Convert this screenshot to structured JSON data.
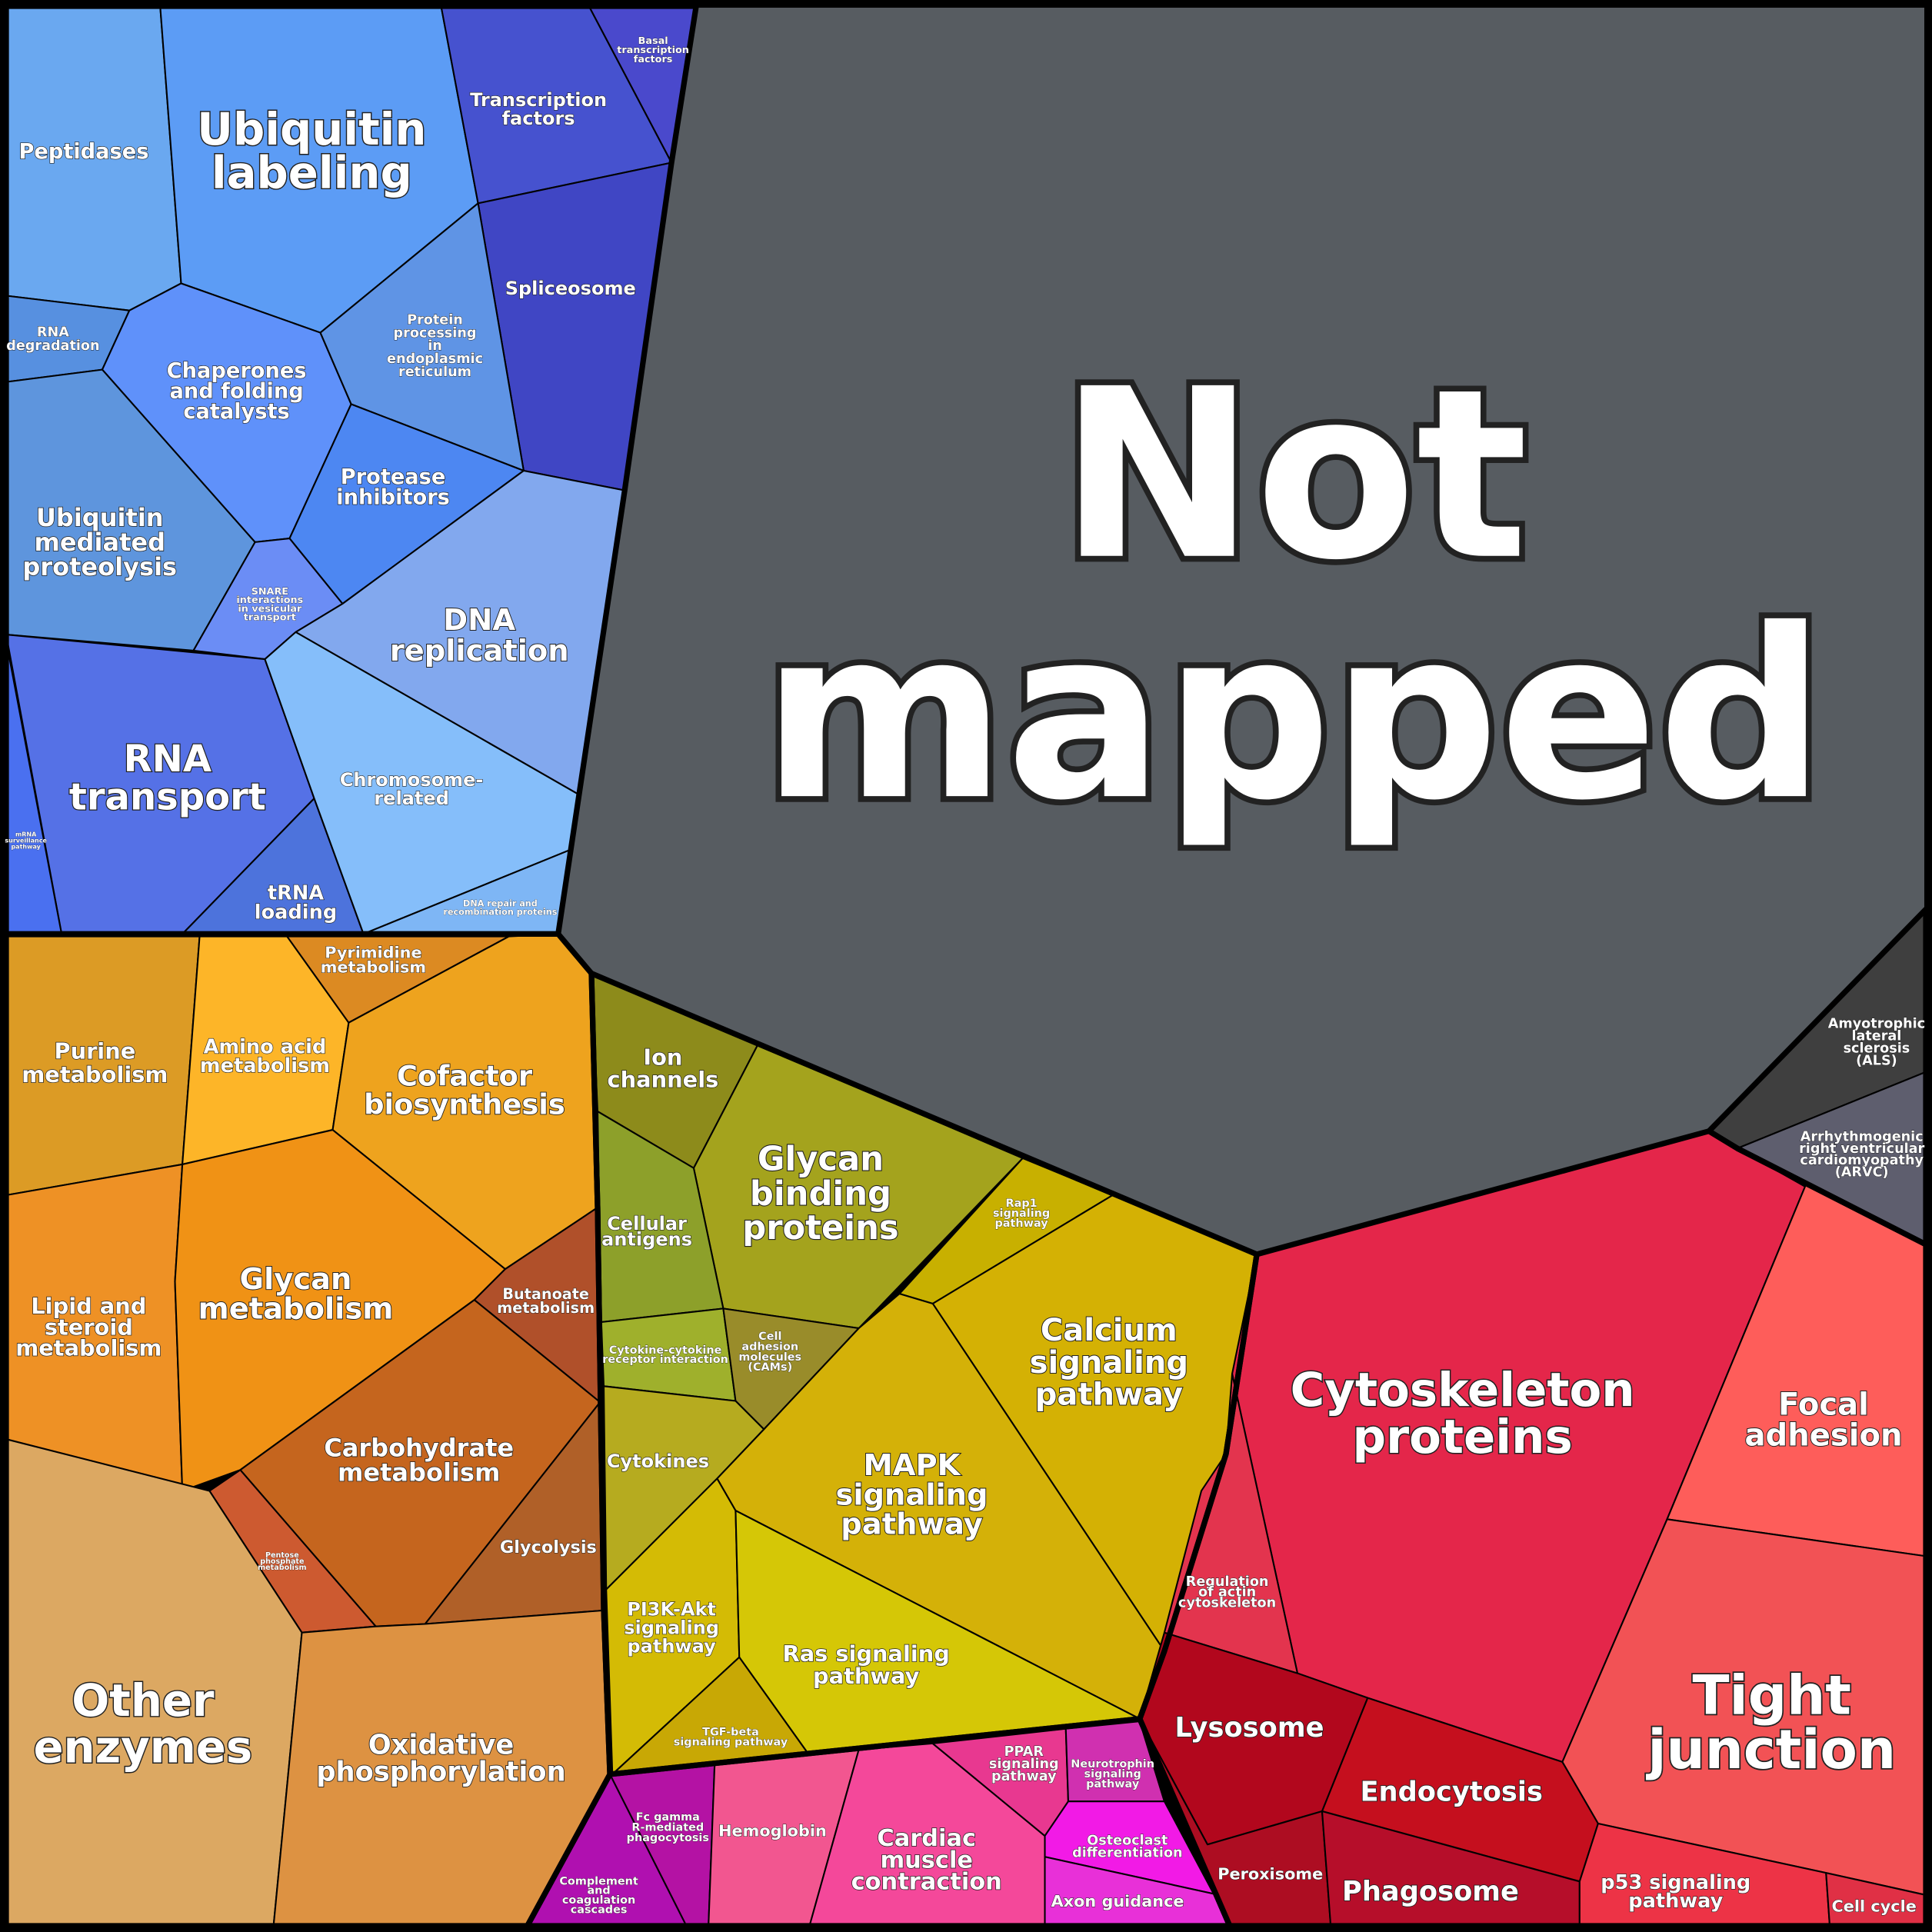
{
  "cells": [
    {
      "label": [
        "Peptidases"
      ]
    },
    {
      "label": [
        "Ubiquitin",
        "labeling"
      ]
    },
    {
      "label": [
        "Transcription",
        "factors"
      ]
    },
    {
      "label": [
        "Basal",
        "transcription",
        "factors"
      ]
    },
    {
      "label": [
        "Spliceosome"
      ]
    },
    {
      "label": [
        "RNA",
        "degradation"
      ]
    },
    {
      "label": [
        "Chaperones",
        "and folding",
        "catalysts"
      ]
    },
    {
      "label": [
        "Protein",
        "processing",
        "in",
        "endoplasmic",
        "reticulum"
      ]
    },
    {
      "label": [
        "Protease",
        "inhibitors"
      ]
    },
    {
      "label": [
        "Ubiquitin",
        "mediated",
        "proteolysis"
      ]
    },
    {
      "label": [
        "SNARE",
        "interactions",
        "in vesicular",
        "transport"
      ]
    },
    {
      "label": [
        "DNA",
        "replication"
      ]
    },
    {
      "label": [
        "RNA",
        "transport"
      ]
    },
    {
      "label": [
        "mRNA",
        "surveillance",
        "pathway"
      ]
    },
    {
      "label": [
        "tRNA",
        "loading"
      ]
    },
    {
      "label": [
        "Chromosome-",
        "related"
      ]
    },
    {
      "label": [
        "DNA repair and",
        "recombination proteins"
      ]
    },
    {
      "label": [
        "Not",
        "mapped"
      ]
    },
    {
      "label": [
        "Amyotrophic",
        "lateral",
        "sclerosis",
        "(ALS)"
      ]
    },
    {
      "label": [
        "Arrhythmogenic",
        "right ventricular",
        "cardiomyopathy",
        "(ARVC)"
      ]
    },
    {
      "label": [
        "Purine",
        "metabolism"
      ]
    },
    {
      "label": [
        "Amino acid",
        "metabolism"
      ]
    },
    {
      "label": [
        "Pyrimidine",
        "metabolism"
      ]
    },
    {
      "label": [
        "Cofactor",
        "biosynthesis"
      ]
    },
    {
      "label": [
        "Lipid and",
        "steroid",
        "metabolism"
      ]
    },
    {
      "label": [
        "Glycan",
        "metabolism"
      ]
    },
    {
      "label": [
        "Butanoate",
        "metabolism"
      ]
    },
    {
      "label": [
        "Carbohydrate",
        "metabolism"
      ]
    },
    {
      "label": [
        "Glycolysis"
      ]
    },
    {
      "label": [
        "Pentose",
        "phosphate",
        "metabolism"
      ]
    },
    {
      "label": [
        "Other",
        "enzymes"
      ]
    },
    {
      "label": [
        "Oxidative",
        "phosphorylation"
      ]
    },
    {
      "label": [
        "Ion",
        "channels"
      ]
    },
    {
      "label": [
        "Glycan",
        "binding",
        "proteins"
      ]
    },
    {
      "label": [
        "Cellular",
        "antigens"
      ]
    },
    {
      "label": [
        "Cytokine-cytokine",
        "receptor interaction"
      ]
    },
    {
      "label": [
        "Cell",
        "adhesion",
        "molecules",
        "(CAMs)"
      ]
    },
    {
      "label": [
        "Cytokines"
      ]
    },
    {
      "label": [
        "Rap1",
        "signaling",
        "pathway"
      ]
    },
    {
      "label": [
        "Calcium",
        "signaling",
        "pathway"
      ]
    },
    {
      "label": [
        "MAPK",
        "signaling",
        "pathway"
      ]
    },
    {
      "label": [
        "PI3K-Akt",
        "signaling",
        "pathway"
      ]
    },
    {
      "label": [
        "Ras signaling",
        "pathway"
      ]
    },
    {
      "label": [
        "TGF-beta",
        "signaling pathway"
      ]
    },
    {
      "label": [
        "Cytoskeleton",
        "proteins"
      ]
    },
    {
      "label": [
        "Focal",
        "adhesion"
      ]
    },
    {
      "label": [
        "Regulation",
        "of actin",
        "cytoskeleton"
      ]
    },
    {
      "label": [
        "Tight",
        "junction"
      ]
    },
    {
      "label": [
        "Lysosome"
      ]
    },
    {
      "label": [
        "Endocytosis"
      ]
    },
    {
      "label": [
        "Peroxisome"
      ]
    },
    {
      "label": [
        "Phagosome"
      ]
    },
    {
      "label": [
        "p53 signaling",
        "pathway"
      ]
    },
    {
      "label": [
        "Cell cycle"
      ]
    },
    {
      "label": [
        "Fc gamma",
        "R-mediated",
        "phagocytosis"
      ]
    },
    {
      "label": [
        "Complement",
        "and",
        "coagulation",
        "cascades"
      ]
    },
    {
      "label": [
        "Hemoglobin"
      ]
    },
    {
      "label": [
        "Cardiac",
        "muscle",
        "contraction"
      ]
    },
    {
      "label": [
        "PPAR",
        "signaling",
        "pathway"
      ]
    },
    {
      "label": [
        "Neurotrophin",
        "signaling",
        "pathway"
      ]
    },
    {
      "label": [
        "Osteoclast",
        "differentiation"
      ]
    },
    {
      "label": [
        "Axon guidance"
      ]
    }
  ]
}
